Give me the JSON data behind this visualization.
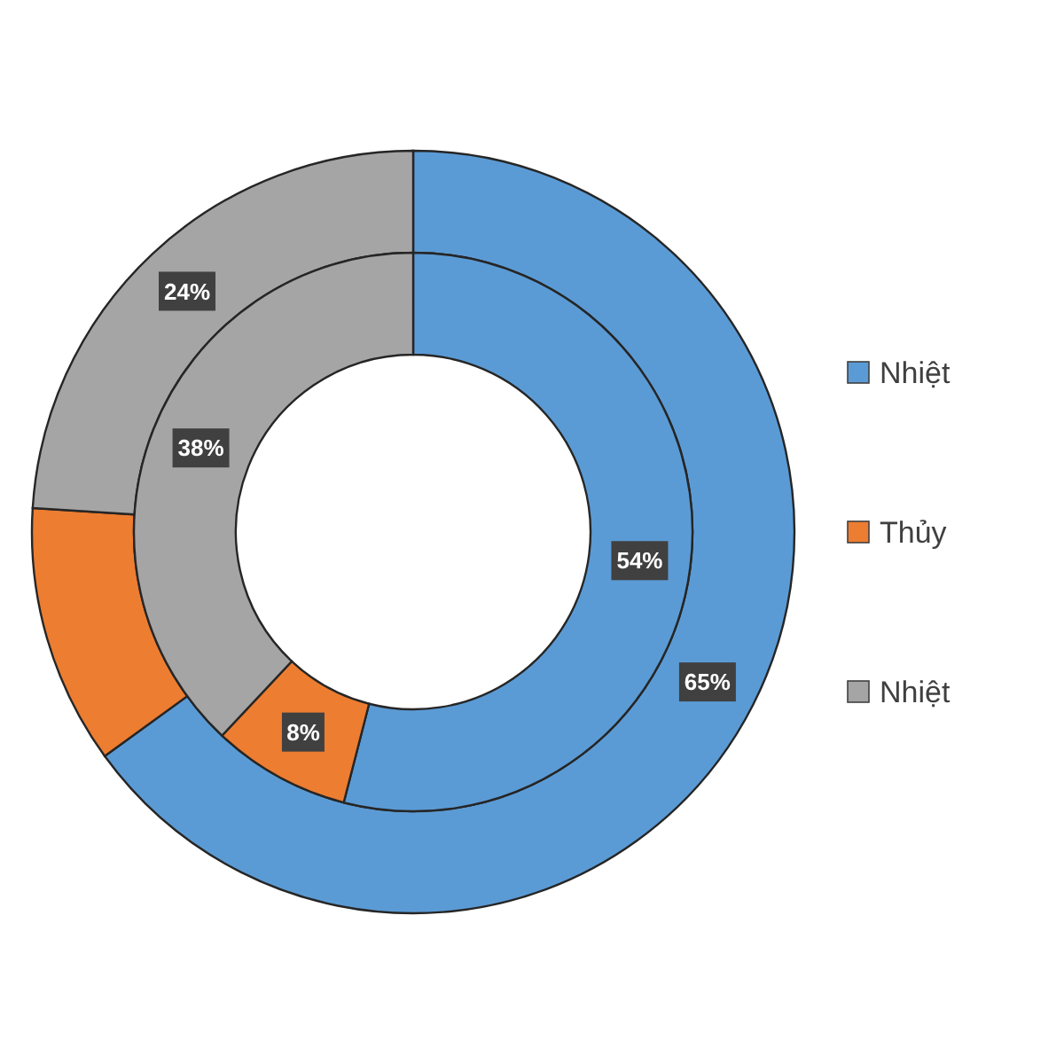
{
  "chart_data": {
    "type": "donut",
    "categories": [
      "Nhiệt",
      "Thủy",
      "Nhiệt"
    ],
    "colors": [
      "#5b9bd5",
      "#ed7d31",
      "#a5a5a5"
    ],
    "legend": "right",
    "series": [
      {
        "values": [
          65,
          11,
          24
        ],
        "value_labels": [
          "65%",
          null,
          "24%"
        ]
      },
      {
        "values": [
          54,
          8,
          38
        ],
        "value_labels": [
          "54%",
          "8%",
          "38%"
        ]
      }
    ]
  }
}
